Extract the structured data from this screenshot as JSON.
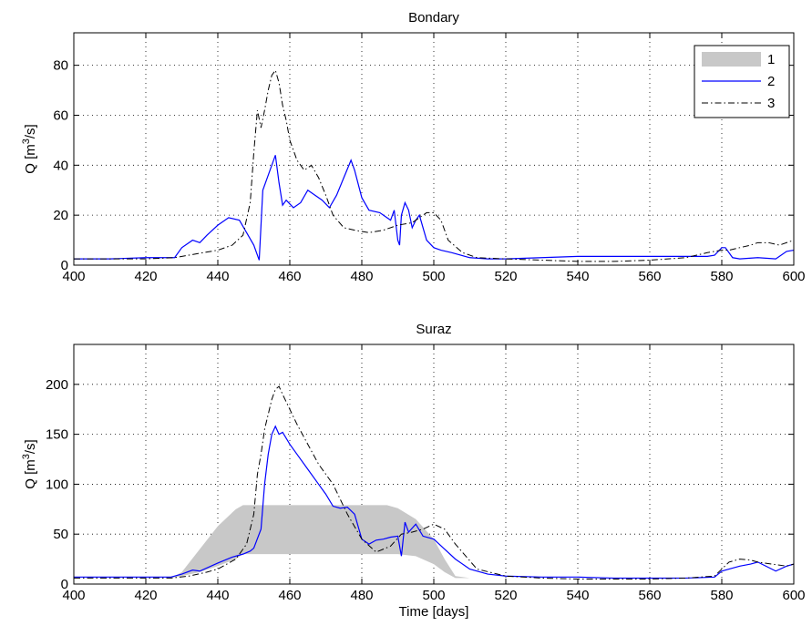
{
  "chart_data": [
    {
      "type": "line",
      "title": "Bondary",
      "xlabel": "",
      "ylabel": "Q [m",
      "ylabel_sup": "3",
      "ylabel_tail": "/s]",
      "xlim": [
        400,
        600
      ],
      "ylim": [
        0,
        93
      ],
      "xticks": [
        400,
        420,
        440,
        460,
        480,
        500,
        520,
        540,
        560,
        580,
        600
      ],
      "yticks": [
        0,
        20,
        40,
        60,
        80
      ],
      "grid": true,
      "legend": {
        "placement": "top-right",
        "entries": [
          {
            "label": "1",
            "style": "band",
            "color": "#c8c8c8"
          },
          {
            "label": "2",
            "style": "solid",
            "color": "#0000ff"
          },
          {
            "label": "3",
            "style": "dashdot",
            "color": "#000000"
          }
        ]
      },
      "series": [
        {
          "name": "2",
          "style": "solid",
          "color": "#0000ff",
          "x": [
            400,
            410,
            420,
            428,
            430,
            433,
            435,
            437,
            440,
            443,
            446,
            448,
            450,
            451.5,
            452.5,
            454,
            456,
            457,
            458,
            459,
            461,
            463,
            465,
            467,
            469,
            471,
            473,
            475,
            477,
            478,
            480,
            482,
            485,
            488,
            489,
            490,
            490.5,
            491,
            492,
            493,
            494,
            495,
            496,
            498,
            500,
            502,
            505,
            510,
            515,
            520,
            530,
            540,
            550,
            560,
            570,
            576,
            578,
            580,
            581,
            583,
            585,
            590,
            595,
            598,
            600
          ],
          "y": [
            2.5,
            2.5,
            3,
            3,
            7,
            10,
            9,
            12,
            16,
            19,
            18,
            13,
            8,
            2,
            30,
            36,
            44,
            33,
            24,
            26,
            23,
            25,
            30,
            28,
            26,
            23,
            28,
            35,
            42,
            38,
            27,
            22,
            21,
            18,
            22,
            10,
            8,
            20,
            25,
            22,
            15,
            18,
            20,
            10,
            7,
            6,
            5,
            3,
            2.5,
            2.5,
            3,
            3.5,
            3.5,
            3.5,
            3.5,
            3.5,
            4,
            7,
            7,
            3,
            2.5,
            3,
            2.5,
            5.5,
            6
          ]
        },
        {
          "name": "3",
          "style": "dashdot",
          "color": "#000000",
          "x": [
            400,
            410,
            420,
            428,
            432,
            436,
            440,
            444,
            447,
            449,
            450,
            451,
            452,
            453,
            454,
            455,
            456,
            457,
            458,
            459,
            460,
            462,
            464,
            466,
            468,
            470,
            472,
            475,
            478,
            482,
            486,
            490,
            494,
            496,
            498,
            500,
            502,
            504,
            508,
            512,
            520,
            530,
            540,
            550,
            560,
            570,
            576,
            580,
            582,
            585,
            588,
            590,
            593,
            596,
            600
          ],
          "y": [
            2.5,
            2.5,
            2.5,
            3,
            4,
            5,
            6,
            8,
            12,
            25,
            45,
            62,
            55,
            62,
            70,
            76,
            78,
            73,
            64,
            58,
            50,
            42,
            38,
            40,
            35,
            28,
            20,
            15,
            14,
            13,
            14,
            16,
            17,
            19,
            21,
            21,
            18,
            10,
            5,
            3,
            2.5,
            2,
            1.5,
            1.5,
            2,
            3,
            5,
            6,
            6,
            7,
            8,
            9,
            9,
            8,
            10
          ]
        }
      ]
    },
    {
      "type": "line",
      "title": "Suraz",
      "xlabel": "Time [days]",
      "ylabel": "Q [m",
      "ylabel_sup": "3",
      "ylabel_tail": "/s]",
      "xlim": [
        400,
        600
      ],
      "ylim": [
        0,
        240
      ],
      "xticks": [
        400,
        420,
        440,
        460,
        480,
        500,
        520,
        540,
        560,
        580,
        600
      ],
      "yticks": [
        0,
        50,
        100,
        150,
        200
      ],
      "grid": true,
      "band": {
        "name": "1",
        "color": "#c8c8c8",
        "x": [
          400,
          427,
          430,
          435,
          440,
          445,
          447,
          450,
          460,
          470,
          480,
          487,
          490,
          495,
          500,
          503,
          506,
          510,
          520,
          540,
          560,
          580,
          600
        ],
        "lower": [
          6,
          6,
          8,
          12,
          18,
          25,
          30,
          30,
          30,
          30,
          30,
          30,
          30,
          28,
          20,
          12,
          6,
          6,
          6,
          6,
          6,
          6,
          6
        ],
        "upper": [
          6,
          6,
          12,
          35,
          58,
          75,
          79,
          79,
          79,
          79,
          79,
          79,
          76,
          65,
          45,
          25,
          8,
          6,
          6,
          6,
          6,
          6,
          6
        ]
      },
      "series": [
        {
          "name": "2",
          "style": "solid",
          "color": "#0000ff",
          "x": [
            400,
            410,
            420,
            427,
            430,
            433,
            435,
            440,
            444,
            447,
            449,
            450,
            452,
            453,
            454,
            455,
            456,
            457,
            458,
            460,
            462,
            465,
            468,
            470,
            472,
            474,
            476,
            478,
            480,
            482,
            484,
            486,
            488,
            490,
            491,
            492,
            493,
            495,
            497,
            500,
            503,
            506,
            510,
            515,
            520,
            530,
            540,
            550,
            560,
            570,
            578,
            580,
            582,
            585,
            588,
            590,
            595,
            598,
            600
          ],
          "y": [
            7,
            7,
            7,
            7,
            10,
            14,
            13,
            21,
            27,
            30,
            33,
            36,
            55,
            100,
            130,
            150,
            158,
            150,
            152,
            140,
            130,
            115,
            100,
            90,
            78,
            76,
            77,
            70,
            45,
            40,
            44,
            45,
            47,
            48,
            28,
            62,
            52,
            60,
            48,
            45,
            35,
            25,
            15,
            10,
            8,
            7,
            7,
            6,
            6,
            6,
            7,
            13,
            15,
            18,
            20,
            22,
            13,
            18,
            20
          ]
        },
        {
          "name": "3",
          "style": "dashdot",
          "color": "#000000",
          "x": [
            400,
            410,
            420,
            427,
            432,
            437,
            440,
            445,
            448,
            450,
            451,
            452,
            453,
            454,
            455,
            456,
            457,
            458,
            460,
            462,
            465,
            468,
            472,
            476,
            480,
            484,
            488,
            491,
            494,
            497,
            500,
            503,
            506,
            512,
            520,
            530,
            540,
            550,
            560,
            570,
            578,
            580,
            582,
            585,
            588,
            590,
            594,
            598,
            600
          ],
          "y": [
            6,
            6,
            6,
            6,
            8,
            12,
            15,
            25,
            40,
            70,
            110,
            130,
            155,
            170,
            185,
            195,
            198,
            190,
            175,
            160,
            140,
            120,
            100,
            70,
            45,
            32,
            38,
            50,
            52,
            55,
            60,
            55,
            40,
            15,
            8,
            6,
            5,
            5,
            5,
            6,
            8,
            15,
            22,
            25,
            24,
            22,
            20,
            18,
            20
          ]
        }
      ]
    }
  ]
}
